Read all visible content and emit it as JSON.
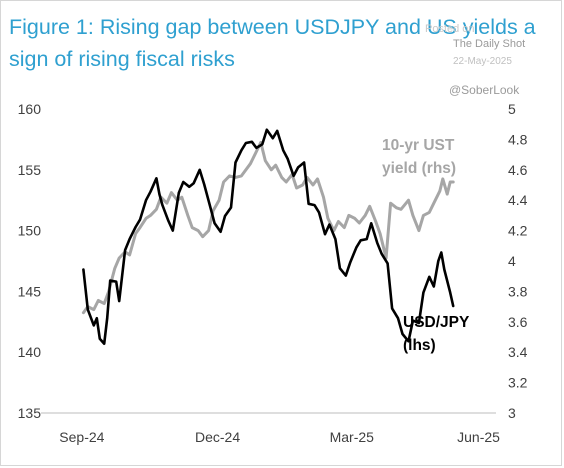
{
  "header": {
    "title": "Figure 1: Rising gap between USDJPY and US yields a sign of rising fiscal risks"
  },
  "watermark": {
    "posted": "Posted on",
    "source": "The Daily Shot",
    "date": "22-May-2025",
    "handle": "@SoberLook"
  },
  "chart_data": {
    "type": "line",
    "title": "Figure 1: Rising gap between USDJPY and US yields a sign of rising fiscal risks",
    "x_ticks": [
      "Sep-24",
      "Dec-24",
      "Mar-25",
      "Jun-25"
    ],
    "y_left": {
      "ticks": [
        "160",
        "155",
        "150",
        "145",
        "140",
        "135"
      ],
      "range": [
        135,
        160
      ]
    },
    "y_right": {
      "ticks": [
        "5",
        "4.8",
        "4.6",
        "4.4",
        "4.2",
        "4",
        "3.8",
        "3.6",
        "3.4",
        "3.2",
        "3"
      ],
      "range": [
        3,
        5
      ]
    },
    "colors": {
      "usdjpy": "#000000",
      "ust": "#a6a6a6"
    },
    "series": [
      {
        "name": "USD/JPY",
        "label": [
          "USD/JPY",
          "(lhs)"
        ],
        "axis": "left",
        "color": "#000000",
        "x": [
          "2024-09-16",
          "2024-09-19",
          "2024-09-23",
          "2024-09-25",
          "2024-09-27",
          "2024-09-30",
          "2024-10-02",
          "2024-10-04",
          "2024-10-08",
          "2024-10-10",
          "2024-10-14",
          "2024-10-17",
          "2024-10-21",
          "2024-10-24",
          "2024-10-28",
          "2024-10-31",
          "2024-11-04",
          "2024-11-06",
          "2024-11-08",
          "2024-11-12",
          "2024-11-15",
          "2024-11-19",
          "2024-11-22",
          "2024-11-26",
          "2024-11-29",
          "2024-12-03",
          "2024-12-06",
          "2024-12-10",
          "2024-12-13",
          "2024-12-17",
          "2024-12-20",
          "2024-12-24",
          "2024-12-27",
          "2024-12-31",
          "2025-01-03",
          "2025-01-07",
          "2025-01-10",
          "2025-01-14",
          "2025-01-17",
          "2025-01-21",
          "2025-01-24",
          "2025-01-28",
          "2025-01-31",
          "2025-02-04",
          "2025-02-07",
          "2025-02-11",
          "2025-02-14",
          "2025-02-18",
          "2025-02-21",
          "2025-02-25",
          "2025-02-28",
          "2025-03-04",
          "2025-03-07",
          "2025-03-11",
          "2025-03-14",
          "2025-03-18",
          "2025-03-21",
          "2025-03-25",
          "2025-03-28",
          "2025-04-01",
          "2025-04-04",
          "2025-04-08",
          "2025-04-11",
          "2025-04-15",
          "2025-04-18",
          "2025-04-22",
          "2025-04-25",
          "2025-04-29",
          "2025-05-02",
          "2025-05-06",
          "2025-05-09",
          "2025-05-12",
          "2025-05-14",
          "2025-05-16",
          "2025-05-20",
          "2025-05-22"
        ],
        "values": [
          146.8,
          143.5,
          142.2,
          142.8,
          141.1,
          140.7,
          142.8,
          145.9,
          145.8,
          144.2,
          148.4,
          149.3,
          150.3,
          150.9,
          152.5,
          153.2,
          154.3,
          153.0,
          152.1,
          150.8,
          150.0,
          153.1,
          154.0,
          153.6,
          153.9,
          155.0,
          153.8,
          152.0,
          150.6,
          149.9,
          151.2,
          151.9,
          155.6,
          156.6,
          157.2,
          157.3,
          156.8,
          157.1,
          158.3,
          157.6,
          158.2,
          156.6,
          155.9,
          154.5,
          155.2,
          155.6,
          152.2,
          152.1,
          151.5,
          149.7,
          150.5,
          149.3,
          146.9,
          146.3,
          147.4,
          148.6,
          149.2,
          149.3,
          150.6,
          149.0,
          148.1,
          147.3,
          143.6,
          142.8,
          141.5,
          140.9,
          142.6,
          142.4,
          144.9,
          146.2,
          145.4,
          147.5,
          148.2,
          146.8,
          144.9,
          143.8
        ]
      },
      {
        "name": "10-yr UST yield",
        "label": [
          "10-yr UST",
          "yield (rhs)"
        ],
        "axis": "right",
        "color": "#a6a6a6",
        "x": [
          "2024-09-16",
          "2024-09-19",
          "2024-09-23",
          "2024-09-26",
          "2024-09-30",
          "2024-10-03",
          "2024-10-07",
          "2024-10-10",
          "2024-10-14",
          "2024-10-17",
          "2024-10-21",
          "2024-10-24",
          "2024-10-28",
          "2024-10-31",
          "2024-11-04",
          "2024-11-07",
          "2024-11-11",
          "2024-11-14",
          "2024-11-18",
          "2024-11-21",
          "2024-11-25",
          "2024-11-28",
          "2024-12-02",
          "2024-12-05",
          "2024-12-09",
          "2024-12-12",
          "2024-12-16",
          "2024-12-19",
          "2024-12-23",
          "2024-12-27",
          "2024-12-31",
          "2025-01-06",
          "2025-01-09",
          "2025-01-13",
          "2025-01-16",
          "2025-01-20",
          "2025-01-23",
          "2025-01-27",
          "2025-01-30",
          "2025-02-03",
          "2025-02-06",
          "2025-02-10",
          "2025-02-13",
          "2025-02-17",
          "2025-02-20",
          "2025-02-24",
          "2025-02-27",
          "2025-03-03",
          "2025-03-06",
          "2025-03-10",
          "2025-03-13",
          "2025-03-17",
          "2025-03-20",
          "2025-03-24",
          "2025-03-27",
          "2025-03-31",
          "2025-04-03",
          "2025-04-07",
          "2025-04-10",
          "2025-04-14",
          "2025-04-17",
          "2025-04-22",
          "2025-04-25",
          "2025-04-29",
          "2025-05-02",
          "2025-05-06",
          "2025-05-09",
          "2025-05-13",
          "2025-05-15",
          "2025-05-18",
          "2025-05-20",
          "2025-05-22"
        ],
        "values": [
          3.66,
          3.7,
          3.68,
          3.74,
          3.72,
          3.8,
          3.95,
          4.02,
          4.06,
          4.04,
          4.18,
          4.22,
          4.28,
          4.3,
          4.34,
          4.42,
          4.38,
          4.45,
          4.4,
          4.42,
          4.3,
          4.22,
          4.2,
          4.16,
          4.2,
          4.33,
          4.4,
          4.52,
          4.56,
          4.55,
          4.56,
          4.64,
          4.7,
          4.78,
          4.66,
          4.6,
          4.63,
          4.55,
          4.52,
          4.57,
          4.48,
          4.5,
          4.55,
          4.5,
          4.54,
          4.42,
          4.28,
          4.2,
          4.26,
          4.22,
          4.3,
          4.28,
          4.25,
          4.3,
          4.36,
          4.26,
          4.18,
          4.02,
          4.38,
          4.35,
          4.34,
          4.4,
          4.3,
          4.2,
          4.3,
          4.32,
          4.38,
          4.46,
          4.54,
          4.44,
          4.52,
          4.52
        ]
      }
    ]
  }
}
